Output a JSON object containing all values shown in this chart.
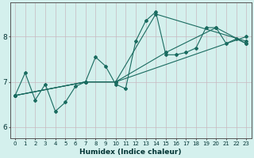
{
  "xlabel": "Humidex (Indice chaleur)",
  "xlim": [
    -0.5,
    23.5
  ],
  "ylim": [
    5.75,
    8.75
  ],
  "yticks": [
    6,
    7,
    8
  ],
  "xticks": [
    0,
    1,
    2,
    3,
    4,
    5,
    6,
    7,
    8,
    9,
    10,
    11,
    12,
    13,
    14,
    15,
    16,
    17,
    18,
    19,
    20,
    21,
    22,
    23
  ],
  "bg_color": "#d4f0ed",
  "grid_color_v": "#c8b8c0",
  "grid_color_h": "#c8b8c0",
  "line_color": "#1a6b60",
  "lines": [
    {
      "x": [
        0,
        1,
        2,
        3,
        4,
        5,
        6,
        7,
        8,
        9,
        10,
        11,
        12,
        13,
        14,
        15,
        16,
        17,
        18,
        19,
        20,
        21,
        22,
        23
      ],
      "y": [
        6.7,
        7.2,
        6.6,
        6.95,
        6.35,
        6.55,
        6.9,
        7.0,
        7.55,
        7.35,
        6.95,
        6.85,
        7.9,
        8.35,
        8.55,
        7.6,
        7.6,
        7.65,
        7.75,
        8.2,
        8.2,
        7.85,
        7.95,
        7.85
      ]
    },
    {
      "x": [
        0,
        7,
        10,
        15,
        20,
        23
      ],
      "y": [
        6.7,
        7.0,
        7.0,
        7.65,
        8.2,
        7.85
      ]
    },
    {
      "x": [
        0,
        7,
        10,
        23
      ],
      "y": [
        6.7,
        7.0,
        7.0,
        8.0
      ]
    },
    {
      "x": [
        0,
        7,
        10,
        14,
        23
      ],
      "y": [
        6.7,
        7.0,
        7.0,
        8.5,
        7.9
      ]
    }
  ],
  "marker": "D",
  "markersize": 2.0,
  "linewidth": 0.8,
  "xlabel_fontsize": 6.5,
  "tick_fontsize_x": 5.0,
  "tick_fontsize_y": 6.5
}
